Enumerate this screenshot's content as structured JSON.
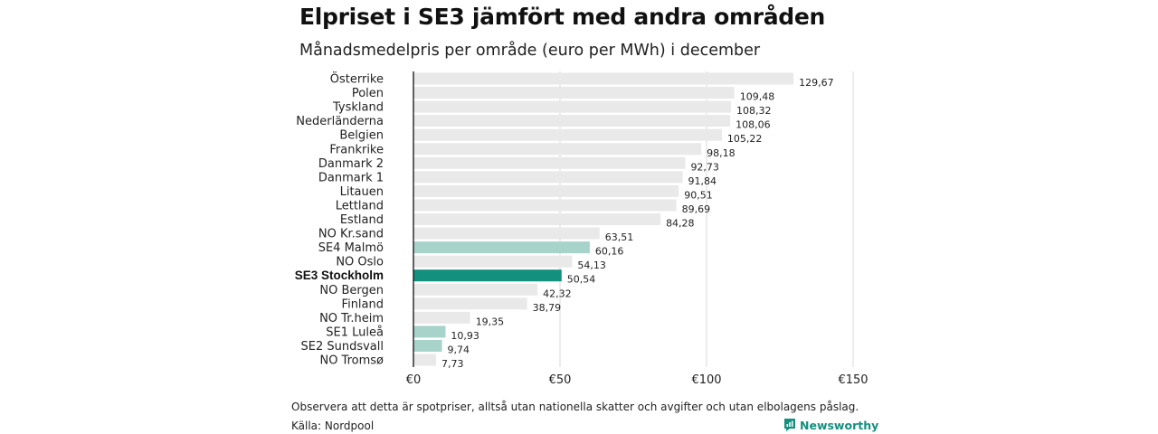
{
  "header": {
    "title": "Elpriset i SE3 jämfört med andra områden",
    "subtitle": "Månadsmedelpris per område (euro per MWh) i december"
  },
  "footer": {
    "note": "Observera att detta är spotpriser, alltså utan nationella skatter och avgifter och utan elbolagens påslag.",
    "source": "Källa: Nordpool",
    "brand": "Newsworthy"
  },
  "colors": {
    "default_bar": "#e9e9e9",
    "light_highlight": "#a7d3cb",
    "highlight": "#14907e",
    "brand": "#14907e"
  },
  "chart_data": {
    "type": "bar",
    "orientation": "horizontal",
    "categories": [
      "Österrike",
      "Polen",
      "Tyskland",
      "Nederländerna",
      "Belgien",
      "Frankrike",
      "Danmark  2",
      "Danmark  1",
      "Litauen",
      "Lettland",
      "Estland",
      "NO Kr.sand",
      "SE4  Malmö",
      "NO Oslo",
      "SE3 Stockholm",
      "NO Bergen",
      "Finland",
      "NO Tr.heim",
      "SE1  Luleå",
      "SE2  Sundsvall",
      "NO Tromsø"
    ],
    "values": [
      129.67,
      109.48,
      108.32,
      108.06,
      105.22,
      98.18,
      92.73,
      91.84,
      90.51,
      89.69,
      84.28,
      63.51,
      60.16,
      54.13,
      50.54,
      42.32,
      38.79,
      19.35,
      10.93,
      9.74,
      7.73
    ],
    "value_labels": [
      "129,67",
      "109,48",
      "108,32",
      "108,06",
      "105,22",
      "98,18",
      "92,73",
      "91,84",
      "90,51",
      "89,69",
      "84,28",
      "63,51",
      "60,16",
      "54,13",
      "50,54",
      "42,32",
      "38,79",
      "19,35",
      "10,93",
      "9,74",
      "7,73"
    ],
    "bar_style": [
      "default",
      "default",
      "default",
      "default",
      "default",
      "default",
      "default",
      "default",
      "default",
      "default",
      "default",
      "default",
      "light",
      "default",
      "highlight",
      "default",
      "default",
      "default",
      "light",
      "light",
      "default"
    ],
    "highlight_category": "SE3 Stockholm",
    "xlim": [
      0,
      150
    ],
    "xticks": [
      0,
      50,
      100,
      150
    ],
    "xtick_labels": [
      "€0",
      "€50",
      "€100",
      "€150"
    ],
    "grid": true,
    "legend": "none",
    "xlabel": "",
    "ylabel": ""
  }
}
